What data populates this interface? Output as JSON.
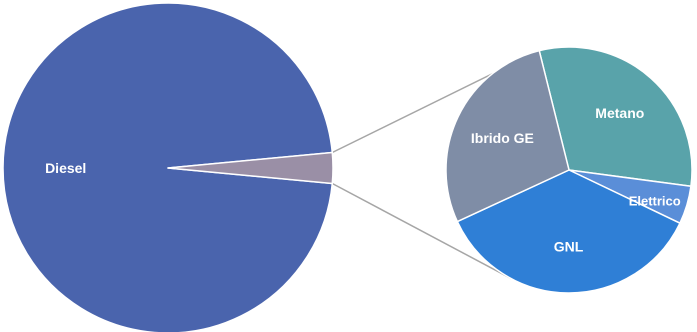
{
  "chart_data": {
    "type": "pie",
    "variant": "pie-of-pie",
    "title": "",
    "slices": [
      {
        "label": "Diesel",
        "value": 97,
        "color": "#4a64ad"
      },
      {
        "label": "Altri",
        "value": 3,
        "color": "#9a8fa6",
        "show_label": false
      }
    ],
    "secondary": {
      "of": "Altri",
      "slices": [
        {
          "label": "Metano",
          "value": 31,
          "color": "#59a3aa"
        },
        {
          "label": "Elettrico",
          "value": 5,
          "color": "#5a8ed8"
        },
        {
          "label": "GNL",
          "value": 36,
          "color": "#2f7fd6"
        },
        {
          "label": "Ibrido GE",
          "value": 28,
          "color": "#7f8da6"
        }
      ]
    },
    "legend": "none",
    "connector_color": "#a6a6a6"
  }
}
